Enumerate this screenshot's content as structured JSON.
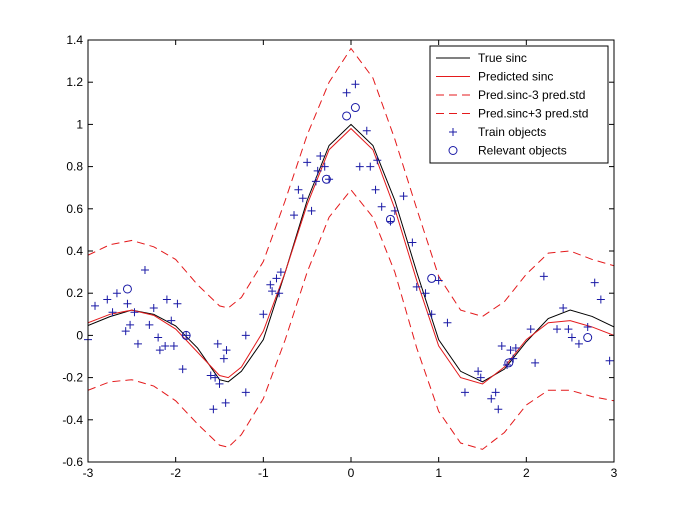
{
  "chart_data": {
    "type": "line",
    "title": "",
    "xlabel": "",
    "ylabel": "",
    "xlim": [
      -3,
      3
    ],
    "ylim": [
      -0.6,
      1.4
    ],
    "x_ticks": [
      -3,
      -2,
      -1,
      0,
      1,
      2,
      3
    ],
    "x_tick_labels": [
      "-3",
      "-2",
      "-1",
      "0",
      "1",
      "2",
      "3"
    ],
    "y_ticks": [
      -0.6,
      -0.4,
      -0.2,
      0,
      0.2,
      0.4,
      0.6,
      0.8,
      1,
      1.2,
      1.4
    ],
    "y_tick_labels": [
      "-0.6",
      "-0.4",
      "-0.2",
      "0",
      "0.2",
      "0.4",
      "0.6",
      "0.8",
      "1",
      "1.2",
      "1.4"
    ],
    "grid": false,
    "legend_position": "top-right",
    "colors": {
      "true_sinc": "#000000",
      "predicted": "#e41a1c",
      "bounds": "#e41a1c",
      "markers": "#1a1aa6"
    },
    "series": [
      {
        "name": "True sinc",
        "style": "solid",
        "color": "#000000",
        "points": [
          [
            -3.0,
            0.047
          ],
          [
            -2.75,
            0.089
          ],
          [
            -2.5,
            0.12
          ],
          [
            -2.25,
            0.1
          ],
          [
            -2.0,
            0.045
          ],
          [
            -1.75,
            -0.06
          ],
          [
            -1.5,
            -0.21
          ],
          [
            -1.4,
            -0.22
          ],
          [
            -1.25,
            -0.17
          ],
          [
            -1.0,
            -0.02
          ],
          [
            -0.75,
            0.3
          ],
          [
            -0.5,
            0.64
          ],
          [
            -0.25,
            0.9
          ],
          [
            0.0,
            1.0
          ],
          [
            0.25,
            0.9
          ],
          [
            0.5,
            0.64
          ],
          [
            0.75,
            0.3
          ],
          [
            1.0,
            -0.02
          ],
          [
            1.25,
            -0.17
          ],
          [
            1.5,
            -0.22
          ],
          [
            1.75,
            -0.16
          ],
          [
            2.0,
            -0.03
          ],
          [
            2.25,
            0.08
          ],
          [
            2.5,
            0.12
          ],
          [
            2.75,
            0.09
          ],
          [
            3.0,
            0.04
          ]
        ]
      },
      {
        "name": "Predicted sinc",
        "style": "solid",
        "color": "#e41a1c",
        "points": [
          [
            -3.0,
            0.06
          ],
          [
            -2.75,
            0.1
          ],
          [
            -2.5,
            0.12
          ],
          [
            -2.25,
            0.095
          ],
          [
            -2.0,
            0.03
          ],
          [
            -1.75,
            -0.08
          ],
          [
            -1.5,
            -0.19
          ],
          [
            -1.4,
            -0.2
          ],
          [
            -1.25,
            -0.15
          ],
          [
            -1.0,
            0.02
          ],
          [
            -0.75,
            0.3
          ],
          [
            -0.5,
            0.62
          ],
          [
            -0.25,
            0.88
          ],
          [
            0.0,
            0.98
          ],
          [
            0.25,
            0.88
          ],
          [
            0.5,
            0.6
          ],
          [
            0.75,
            0.26
          ],
          [
            1.0,
            -0.05
          ],
          [
            1.25,
            -0.2
          ],
          [
            1.5,
            -0.23
          ],
          [
            1.75,
            -0.15
          ],
          [
            2.0,
            -0.02
          ],
          [
            2.25,
            0.06
          ],
          [
            2.5,
            0.07
          ],
          [
            2.75,
            0.04
          ],
          [
            3.0,
            0.0
          ]
        ]
      },
      {
        "name": "Pred.sinc-3 pred.std",
        "style": "dashed",
        "color": "#e41a1c",
        "points": [
          [
            -3.0,
            -0.26
          ],
          [
            -2.75,
            -0.22
          ],
          [
            -2.5,
            -0.21
          ],
          [
            -2.25,
            -0.24
          ],
          [
            -2.0,
            -0.31
          ],
          [
            -1.75,
            -0.42
          ],
          [
            -1.5,
            -0.52
          ],
          [
            -1.4,
            -0.53
          ],
          [
            -1.25,
            -0.47
          ],
          [
            -1.0,
            -0.3
          ],
          [
            -0.75,
            -0.02
          ],
          [
            -0.5,
            0.3
          ],
          [
            -0.25,
            0.56
          ],
          [
            0.0,
            0.69
          ],
          [
            0.25,
            0.56
          ],
          [
            0.5,
            0.3
          ],
          [
            0.75,
            -0.06
          ],
          [
            1.0,
            -0.36
          ],
          [
            1.25,
            -0.51
          ],
          [
            1.5,
            -0.54
          ],
          [
            1.75,
            -0.46
          ],
          [
            2.0,
            -0.33
          ],
          [
            2.25,
            -0.26
          ],
          [
            2.5,
            -0.26
          ],
          [
            2.75,
            -0.29
          ],
          [
            3.0,
            -0.31
          ]
        ]
      },
      {
        "name": "Pred.sinc+3 pred.std",
        "style": "dashed",
        "color": "#e41a1c",
        "points": [
          [
            -3.0,
            0.38
          ],
          [
            -2.75,
            0.43
          ],
          [
            -2.5,
            0.45
          ],
          [
            -2.25,
            0.42
          ],
          [
            -2.0,
            0.36
          ],
          [
            -1.75,
            0.24
          ],
          [
            -1.5,
            0.14
          ],
          [
            -1.4,
            0.13
          ],
          [
            -1.25,
            0.18
          ],
          [
            -1.0,
            0.35
          ],
          [
            -0.75,
            0.64
          ],
          [
            -0.5,
            0.95
          ],
          [
            -0.25,
            1.2
          ],
          [
            0.0,
            1.36
          ],
          [
            0.25,
            1.22
          ],
          [
            0.5,
            0.93
          ],
          [
            0.75,
            0.6
          ],
          [
            1.0,
            0.28
          ],
          [
            1.25,
            0.12
          ],
          [
            1.5,
            0.09
          ],
          [
            1.75,
            0.16
          ],
          [
            2.0,
            0.29
          ],
          [
            2.25,
            0.39
          ],
          [
            2.5,
            0.4
          ],
          [
            2.75,
            0.36
          ],
          [
            3.0,
            0.33
          ]
        ]
      },
      {
        "name": "Train objects",
        "style": "plus",
        "color": "#1a1aa6",
        "points": [
          [
            -3.0,
            -0.02
          ],
          [
            -2.92,
            0.14
          ],
          [
            -2.78,
            0.17
          ],
          [
            -2.72,
            0.11
          ],
          [
            -2.67,
            0.2
          ],
          [
            -2.57,
            0.02
          ],
          [
            -2.55,
            0.15
          ],
          [
            -2.52,
            0.05
          ],
          [
            -2.47,
            0.11
          ],
          [
            -2.43,
            -0.04
          ],
          [
            -2.35,
            0.31
          ],
          [
            -2.3,
            0.05
          ],
          [
            -2.25,
            0.13
          ],
          [
            -2.2,
            -0.01
          ],
          [
            -2.18,
            -0.07
          ],
          [
            -2.12,
            -0.05
          ],
          [
            -2.1,
            0.17
          ],
          [
            -2.05,
            0.07
          ],
          [
            -2.02,
            -0.05
          ],
          [
            -1.98,
            0.15
          ],
          [
            -1.92,
            -0.16
          ],
          [
            -1.88,
            0.0
          ],
          [
            -1.6,
            -0.19
          ],
          [
            -1.57,
            -0.35
          ],
          [
            -1.55,
            -0.2
          ],
          [
            -1.52,
            -0.04
          ],
          [
            -1.5,
            -0.23
          ],
          [
            -1.45,
            -0.11
          ],
          [
            -1.43,
            -0.32
          ],
          [
            -1.42,
            -0.07
          ],
          [
            -1.2,
            -0.27
          ],
          [
            -1.2,
            0.0
          ],
          [
            -1.0,
            0.1
          ],
          [
            -0.92,
            0.24
          ],
          [
            -0.9,
            0.21
          ],
          [
            -0.85,
            0.27
          ],
          [
            -0.82,
            0.2
          ],
          [
            -0.8,
            0.3
          ],
          [
            -0.65,
            0.57
          ],
          [
            -0.6,
            0.69
          ],
          [
            -0.55,
            0.65
          ],
          [
            -0.5,
            0.82
          ],
          [
            -0.45,
            0.59
          ],
          [
            -0.4,
            0.73
          ],
          [
            -0.38,
            0.78
          ],
          [
            -0.35,
            0.85
          ],
          [
            -0.3,
            0.8
          ],
          [
            -0.25,
            0.74
          ],
          [
            -0.05,
            1.15
          ],
          [
            0.05,
            1.19
          ],
          [
            0.1,
            0.8
          ],
          [
            0.18,
            0.97
          ],
          [
            0.22,
            0.8
          ],
          [
            0.28,
            0.69
          ],
          [
            0.3,
            0.83
          ],
          [
            0.35,
            0.61
          ],
          [
            0.45,
            0.54
          ],
          [
            0.5,
            0.59
          ],
          [
            0.6,
            0.66
          ],
          [
            0.7,
            0.44
          ],
          [
            0.75,
            0.23
          ],
          [
            0.85,
            0.2
          ],
          [
            0.92,
            0.1
          ],
          [
            1.0,
            0.26
          ],
          [
            1.1,
            0.06
          ],
          [
            1.3,
            -0.27
          ],
          [
            1.45,
            -0.17
          ],
          [
            1.48,
            -0.2
          ],
          [
            1.6,
            -0.3
          ],
          [
            1.65,
            -0.27
          ],
          [
            1.68,
            -0.35
          ],
          [
            1.72,
            -0.05
          ],
          [
            1.78,
            -0.14
          ],
          [
            1.82,
            -0.07
          ],
          [
            1.85,
            -0.11
          ],
          [
            1.88,
            -0.06
          ],
          [
            2.05,
            0.03
          ],
          [
            2.1,
            -0.13
          ],
          [
            2.2,
            0.28
          ],
          [
            2.35,
            0.03
          ],
          [
            2.42,
            0.13
          ],
          [
            2.48,
            0.03
          ],
          [
            2.52,
            -0.01
          ],
          [
            2.6,
            -0.04
          ],
          [
            2.7,
            0.04
          ],
          [
            2.78,
            0.25
          ],
          [
            2.85,
            0.17
          ],
          [
            2.95,
            -0.12
          ]
        ]
      },
      {
        "name": "Relevant objects",
        "style": "circle",
        "color": "#1a1aa6",
        "points": [
          [
            -2.55,
            0.22
          ],
          [
            -1.88,
            0.0
          ],
          [
            -0.28,
            0.74
          ],
          [
            -0.05,
            1.04
          ],
          [
            0.05,
            1.08
          ],
          [
            0.45,
            0.55
          ],
          [
            0.92,
            0.27
          ],
          [
            1.8,
            -0.13
          ],
          [
            2.7,
            -0.01
          ]
        ]
      }
    ]
  }
}
